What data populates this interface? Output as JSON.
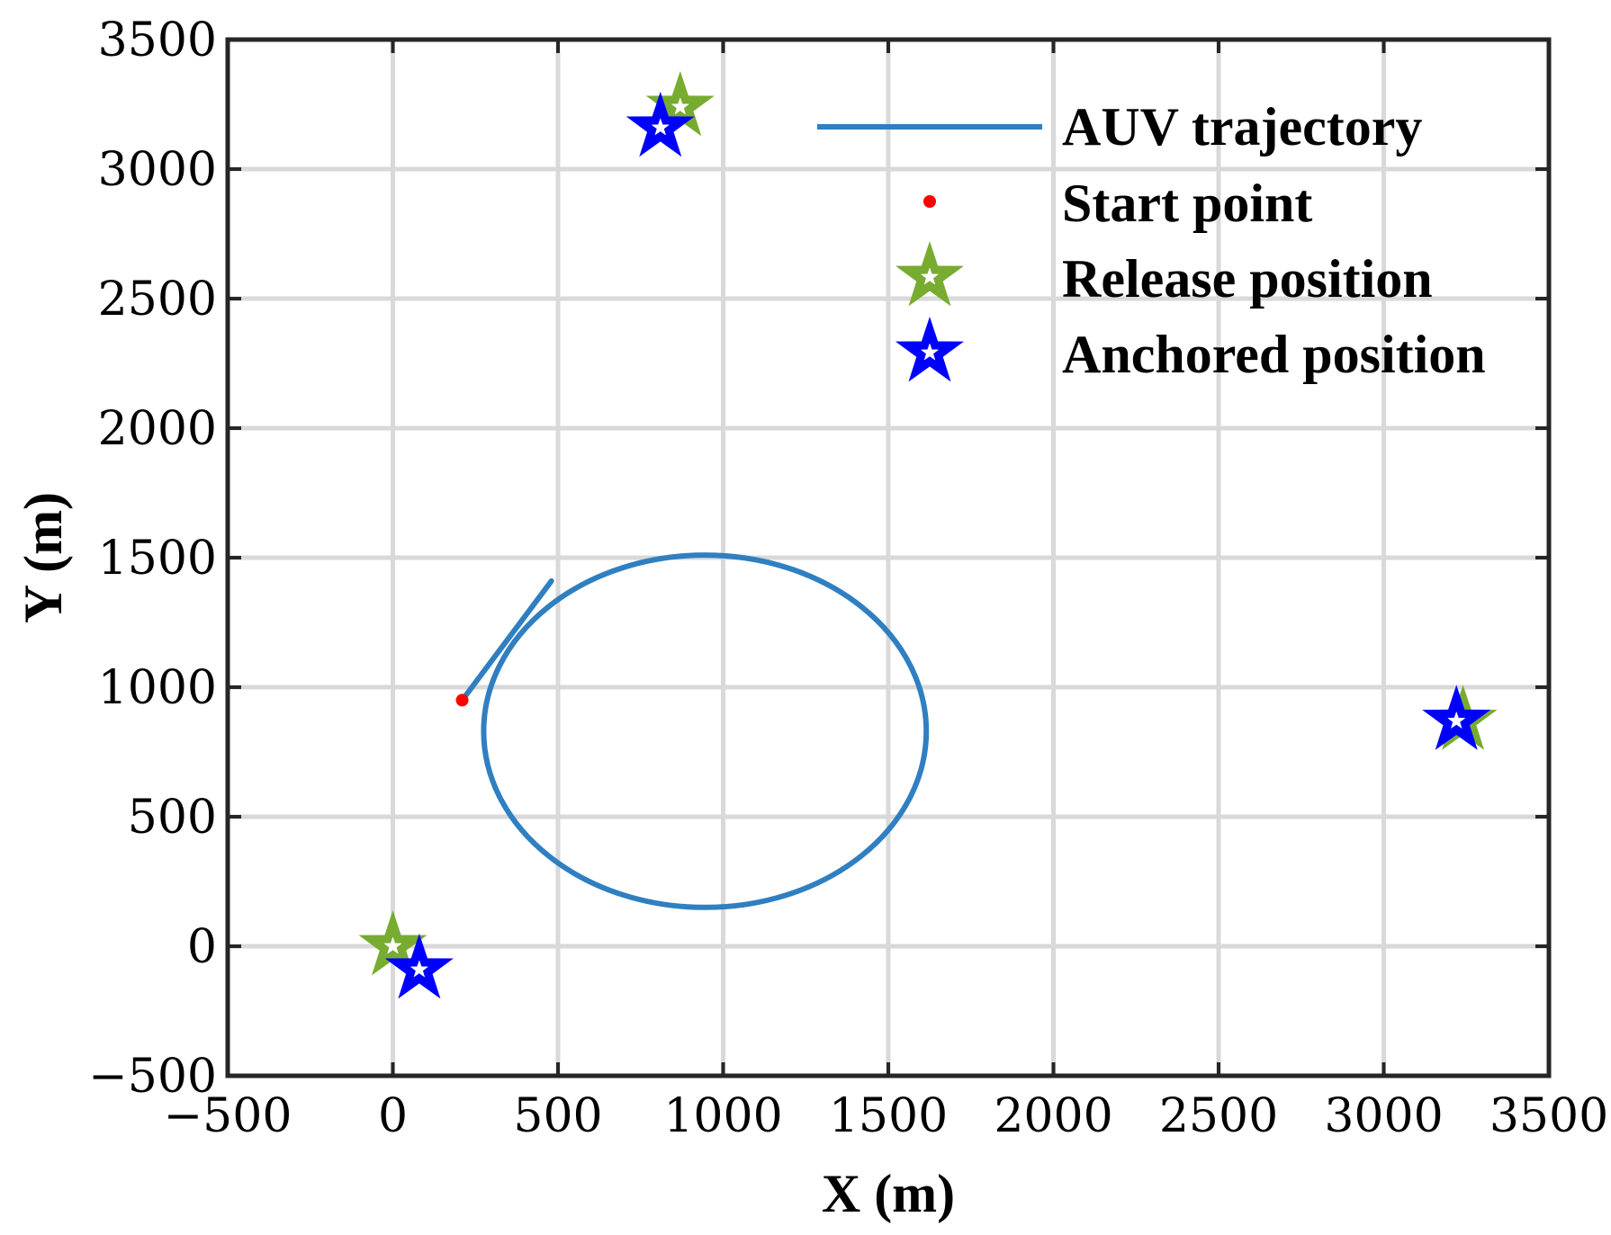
{
  "chart_data": {
    "type": "line",
    "xlabel": "X (m)",
    "ylabel": "Y (m)",
    "xlim": [
      -500,
      3500
    ],
    "ylim": [
      -500,
      3500
    ],
    "xticks": [
      -500,
      0,
      500,
      1000,
      1500,
      2000,
      2500,
      3000,
      3500
    ],
    "yticks": [
      -500,
      0,
      500,
      1000,
      1500,
      2000,
      2500,
      3000,
      3500
    ],
    "xtick_labels": [
      "−500",
      "0",
      "500",
      "1000",
      "1500",
      "2000",
      "2500",
      "3000",
      "3500"
    ],
    "ytick_labels": [
      "−500",
      "0",
      "500",
      "1000",
      "1500",
      "2000",
      "2500",
      "3000",
      "3500"
    ],
    "grid": true,
    "legend_position": "top-right",
    "series": [
      {
        "name": "AUV trajectory",
        "kind": "line",
        "color": "#2f7fc1",
        "entry_segment": [
          [
            210,
            950
          ],
          [
            480,
            1410
          ]
        ],
        "ellipse": {
          "center": [
            945,
            830
          ],
          "radius_x": 670,
          "radius_y": 680
        }
      },
      {
        "name": "Start point",
        "kind": "point",
        "color": "#ff0000",
        "points": [
          [
            210,
            950
          ]
        ]
      },
      {
        "name": "Release position",
        "kind": "star",
        "color": "#77ac30",
        "points": [
          [
            0,
            0
          ],
          [
            870,
            3240
          ],
          [
            3240,
            870
          ]
        ]
      },
      {
        "name": "Anchored position",
        "kind": "star",
        "color": "#0000ff",
        "points": [
          [
            80,
            -90
          ],
          [
            810,
            3160
          ],
          [
            3220,
            870
          ]
        ]
      }
    ]
  }
}
